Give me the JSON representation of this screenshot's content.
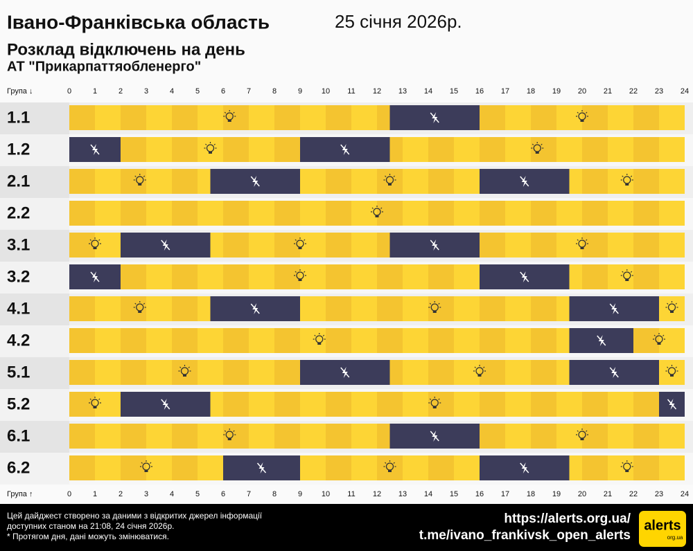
{
  "chart_data": {
    "type": "timeline",
    "title": "Івано-Франківська область",
    "date": "25 січня 2026р.",
    "subtitle": "Розклад відключень на день",
    "company": "АТ \"Прикарпаттяобленерго\"",
    "x_label_top": "Група ↓",
    "x_label_bottom": "Група ↑",
    "xlim": [
      0,
      24
    ],
    "xticks": [
      0,
      1,
      2,
      3,
      4,
      5,
      6,
      7,
      8,
      9,
      10,
      11,
      12,
      13,
      14,
      15,
      16,
      17,
      18,
      19,
      20,
      21,
      22,
      23,
      24
    ],
    "on_colors": [
      "#f4c430",
      "#fdd535"
    ],
    "off_color": "#3c3c5a",
    "series": [
      {
        "name": "1.1",
        "outages": [
          [
            12.5,
            16
          ]
        ]
      },
      {
        "name": "1.2",
        "outages": [
          [
            0,
            2
          ],
          [
            9,
            12.5
          ]
        ]
      },
      {
        "name": "2.1",
        "outages": [
          [
            5.5,
            9
          ],
          [
            16,
            19.5
          ]
        ]
      },
      {
        "name": "2.2",
        "outages": []
      },
      {
        "name": "3.1",
        "outages": [
          [
            2,
            5.5
          ],
          [
            12.5,
            16
          ]
        ]
      },
      {
        "name": "3.2",
        "outages": [
          [
            0,
            2
          ],
          [
            16,
            19.5
          ]
        ]
      },
      {
        "name": "4.1",
        "outages": [
          [
            5.5,
            9
          ],
          [
            19.5,
            23
          ]
        ]
      },
      {
        "name": "4.2",
        "outages": [
          [
            19.5,
            22
          ]
        ]
      },
      {
        "name": "5.1",
        "outages": [
          [
            9,
            12.5
          ],
          [
            19.5,
            23
          ]
        ]
      },
      {
        "name": "5.2",
        "outages": [
          [
            2,
            5.5
          ],
          [
            23,
            24
          ]
        ]
      },
      {
        "name": "6.1",
        "outages": [
          [
            12.5,
            16
          ]
        ]
      },
      {
        "name": "6.2",
        "outages": [
          [
            6,
            9
          ],
          [
            16,
            19.5
          ]
        ]
      }
    ]
  },
  "footer": {
    "note_lines": [
      "Цей дайджест створено за даними з відкритих джерел інформації",
      "доступних станом на 21:08, 24 січня 2026р.",
      "* Протягом дня, дані можуть змінюватися."
    ],
    "link1": "https://alerts.org.ua/",
    "link2": "t.me/ivano_frankivsk_open_alerts",
    "logo": "alerts",
    "logo_sub": "org.ua"
  }
}
